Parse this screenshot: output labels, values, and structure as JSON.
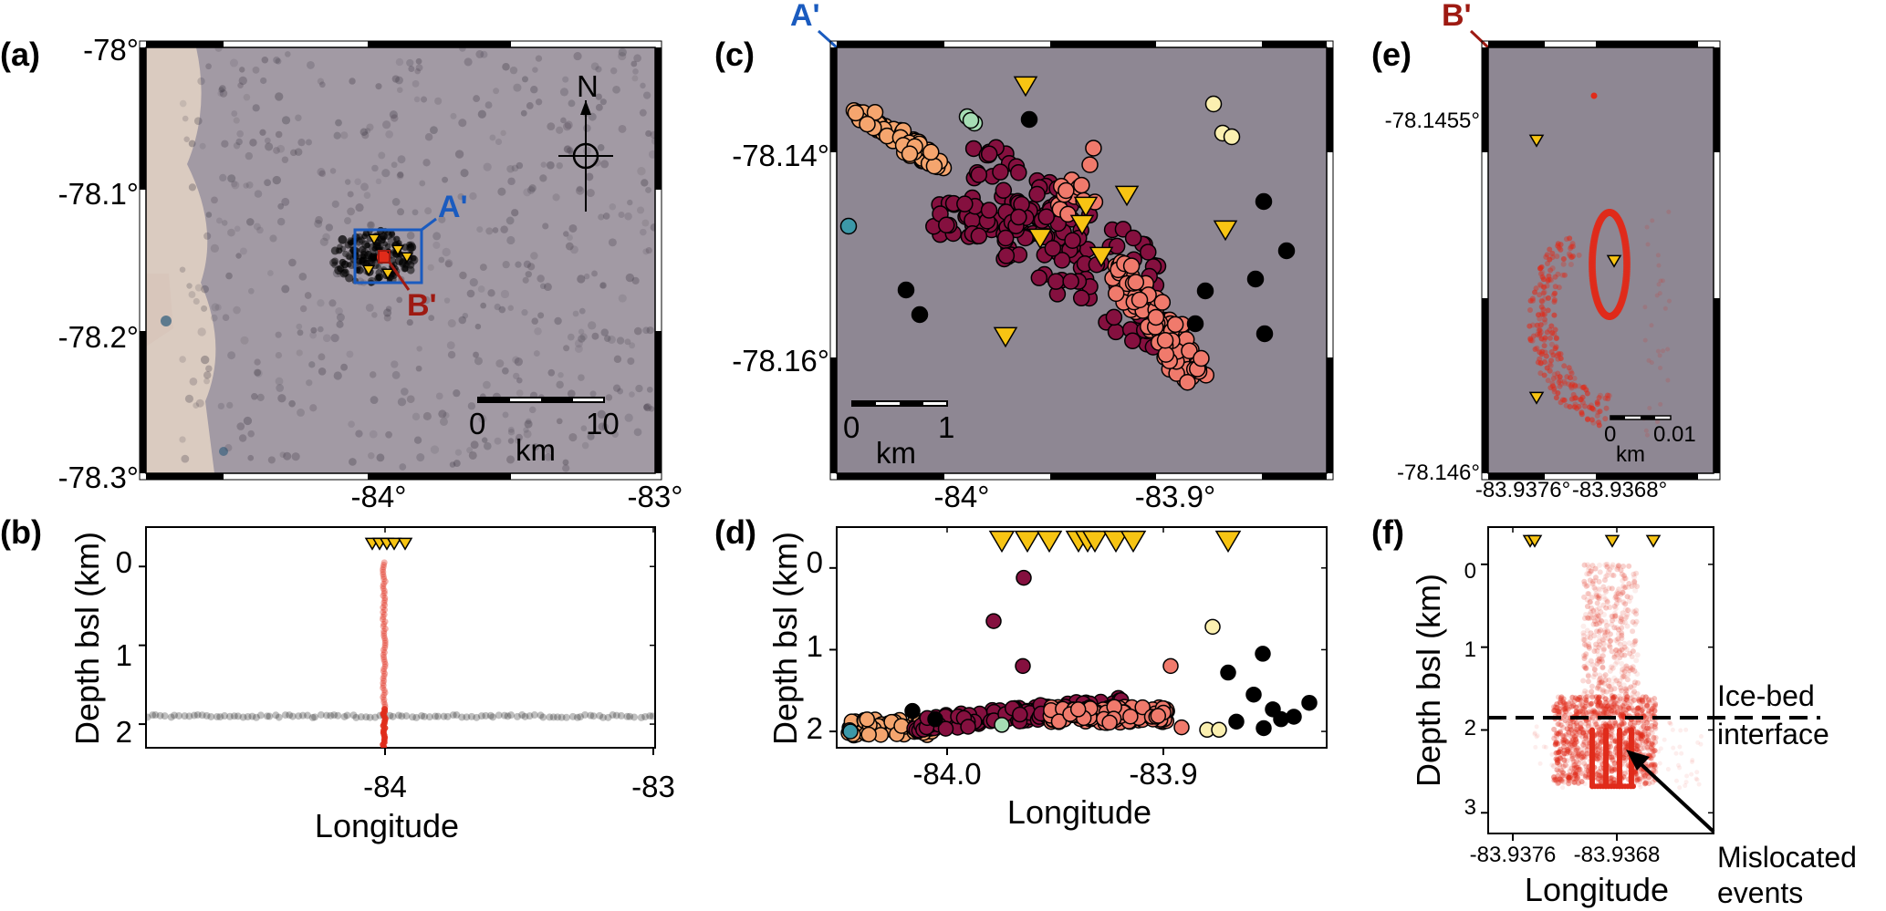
{
  "colors": {
    "map_bg": "#8e8793",
    "cluster1": "#f5a56e",
    "cluster2": "#85103f",
    "cluster3": "#f07a6c",
    "cluster4": "#a6ddb4",
    "cluster5": "#fbf0b0",
    "cluster6": "#3c98a8",
    "other": "#000000",
    "station": "#f7c413",
    "mislocated": "#e02b1a",
    "a_prime": "#1a5bbf",
    "b_prime": "#9e1a12"
  },
  "chart_data": [
    {
      "panel": "(a)",
      "type": "scatter",
      "xlim": [
        -84.6,
        -83.0
      ],
      "ylim": [
        -78.3,
        -78.0
      ],
      "xticks": [
        "-84°",
        "-83°"
      ],
      "yticks": [
        "-78°",
        "-78.1°",
        "-78.2°",
        "-78.3°"
      ],
      "scalebar": {
        "start": "0",
        "end": "10",
        "unit": "km"
      },
      "north_label": "N",
      "box_a": {
        "label": "A'"
      },
      "box_b": {
        "label": "B'"
      }
    },
    {
      "panel": "(b)",
      "type": "scatter",
      "xlabel": "Longitude",
      "ylabel": "Depth bsl (km)",
      "xlim": [
        -84.6,
        -83.0
      ],
      "ylim": [
        2.3,
        -0.5
      ],
      "xticks": [
        "-84",
        "-83"
      ],
      "yticks": [
        "0",
        "1",
        "2"
      ]
    },
    {
      "panel": "(c)",
      "type": "scatter",
      "xlim": [
        -84.045,
        -83.815
      ],
      "ylim": [
        -78.172,
        -78.131
      ],
      "xticks": [
        "-84°",
        "-83.9°"
      ],
      "yticks": [
        "-78.14°",
        "-78.16°"
      ],
      "corner_label": "A'",
      "scalebar": {
        "start": "0",
        "end": "1",
        "unit": "km"
      }
    },
    {
      "panel": "(d)",
      "type": "scatter",
      "xlabel": "Longitude",
      "ylabel": "Depth bsl (km)",
      "xlim": [
        -84.045,
        -83.815
      ],
      "ylim": [
        2.2,
        -0.5
      ],
      "xticks": [
        "-84.0",
        "-83.9"
      ],
      "yticks": [
        "0",
        "1",
        "2"
      ]
    },
    {
      "panel": "(e)",
      "type": "scatter",
      "xlim": [
        -83.9379,
        -83.9363
      ],
      "ylim": [
        -78.1461,
        -78.14535
      ],
      "xticks": [
        "-83.9376°",
        "-83.9368°"
      ],
      "yticks": [
        "-78.1455°",
        "-78.146°"
      ],
      "corner_label": "B'",
      "scalebar": {
        "start": "0",
        "end": "0.01",
        "unit": "km"
      }
    },
    {
      "panel": "(f)",
      "type": "scatter",
      "xlabel": "Longitude",
      "ylabel": "Depth bsl (km)",
      "xlim": [
        -83.9379,
        -83.9363
      ],
      "ylim": [
        3.25,
        -0.45
      ],
      "xticks": [
        "-83.9376",
        "-83.9368"
      ],
      "yticks": [
        "0",
        "1",
        "2",
        "3"
      ],
      "interface_depth": 1.85,
      "annotations": [
        "Ice-bed",
        "interface",
        "Mislocated",
        "events"
      ]
    }
  ]
}
